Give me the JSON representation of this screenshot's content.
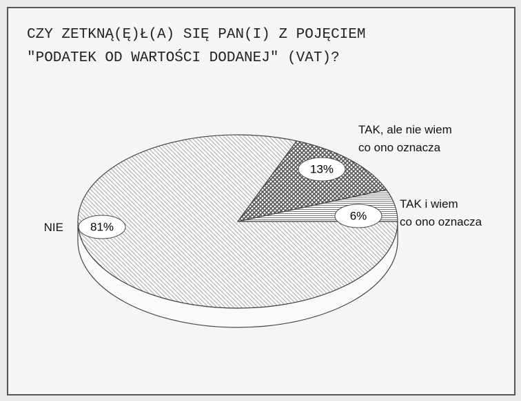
{
  "chart_data": {
    "type": "pie",
    "title": "CZY ZETKNĄ(Ę)Ł(A) SIĘ PAN(I) Z POJĘCIEM\n\"PODATEK OD WARTOŚCI DODANEJ\" (VAT)?",
    "categories": [
      "NIE",
      "TAK, ale nie wiem\nco ono oznacza",
      "TAK i wiem\nco ono oznacza"
    ],
    "values": [
      81,
      13,
      6
    ],
    "value_labels": [
      "81%",
      "13%",
      "6%"
    ],
    "colors": [
      "#9a9a9a",
      "#555555",
      "#7a7a7a"
    ]
  }
}
